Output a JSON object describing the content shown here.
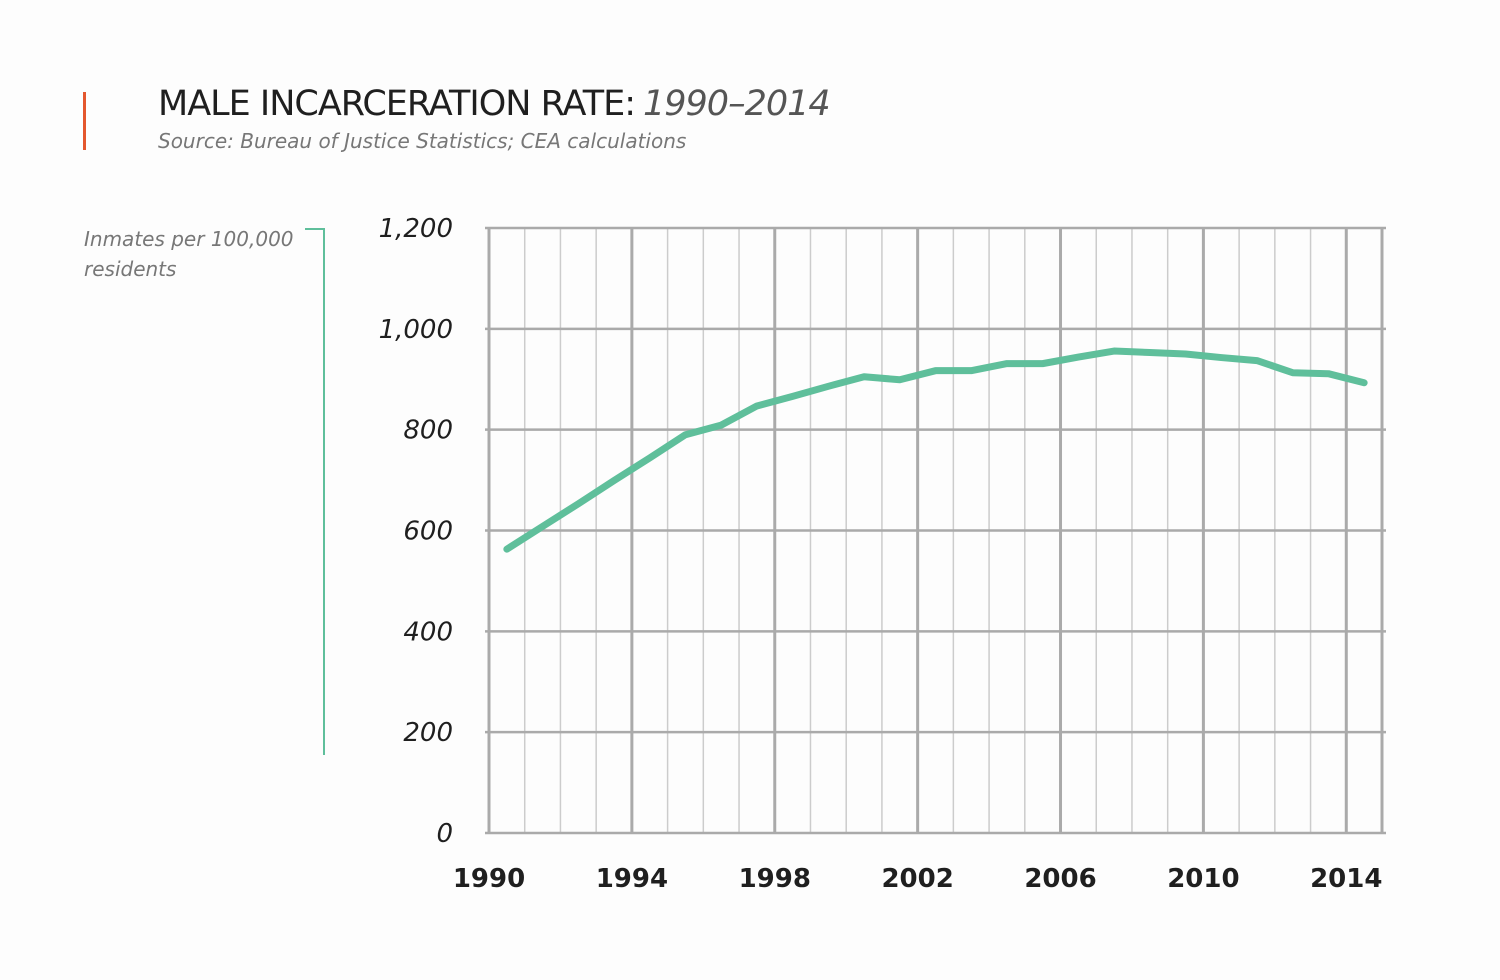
{
  "chart_data": {
    "type": "line",
    "title": "MALE INCARCERATION RATE:",
    "title_years": "1990–2014",
    "subtitle": "Source: Bureau of Justice Statistics; CEA calculations",
    "ylabel": "Inmates per 100,000 residents",
    "xlabel": "",
    "xlim": [
      1990,
      2015
    ],
    "ylim": [
      0,
      1200
    ],
    "grid": true,
    "x_ticks": [
      1990,
      1994,
      1998,
      2002,
      2006,
      2010,
      2014
    ],
    "x_tick_labels": [
      "1990",
      "1994",
      "1998",
      "2002",
      "2006",
      "2010",
      "2014"
    ],
    "y_ticks": [
      0,
      200,
      400,
      600,
      800,
      1000,
      1200
    ],
    "y_tick_labels": [
      "0",
      "200",
      "400",
      "600",
      "800",
      "1,000",
      "1,200"
    ],
    "series": [
      {
        "name": "Male incarceration rate",
        "color": "#5fbf9b",
        "x": [
          1990.5,
          1991.5,
          1992.5,
          1993.5,
          1994.5,
          1995.5,
          1996.5,
          1997.5,
          1998.5,
          1999.5,
          2000.5,
          2001.5,
          2002.5,
          2003.5,
          2004.5,
          2005.5,
          2006.5,
          2007.5,
          2008.5,
          2009.5,
          2010.5,
          2011.5,
          2012.5,
          2013.5,
          2014.5
        ],
        "values": [
          563,
          608,
          653,
          699,
          744,
          790,
          809,
          847,
          866,
          886,
          905,
          899,
          917,
          917,
          931,
          931,
          944,
          956,
          953,
          950,
          943,
          937,
          913,
          911,
          893
        ]
      }
    ]
  }
}
